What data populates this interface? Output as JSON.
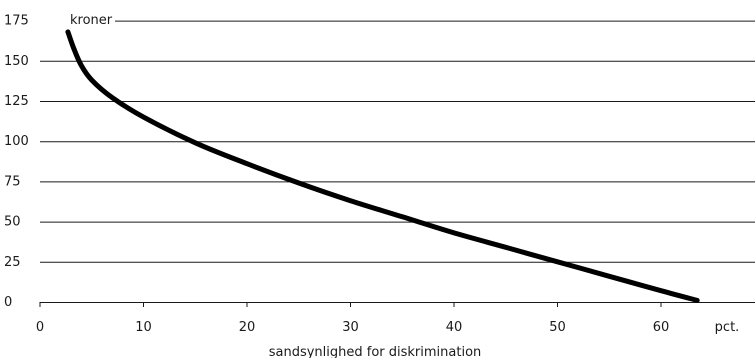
{
  "chart_data": {
    "type": "line",
    "title": "",
    "ylabel": "kroner",
    "xlabel": "sandsynlighed for diskrimination",
    "x_unit": "pct.",
    "xlim": [
      0,
      65
    ],
    "ylim": [
      0,
      175
    ],
    "x_ticks": [
      0,
      10,
      20,
      30,
      40,
      50,
      60
    ],
    "y_ticks": [
      0,
      25,
      50,
      75,
      100,
      125,
      150,
      175
    ],
    "grid": "horizontal",
    "legend": "none",
    "line_color": "#000000",
    "series": [
      {
        "x": [
          2.7,
          3.3,
          4,
          5,
          7,
          10,
          15,
          20,
          25,
          30,
          35,
          40,
          45,
          50,
          55,
          60,
          63.5
        ],
        "y": [
          168,
          157,
          147,
          138,
          127,
          115,
          99,
          86,
          74,
          63,
          53,
          43,
          34,
          25,
          16,
          7,
          1
        ]
      }
    ]
  }
}
